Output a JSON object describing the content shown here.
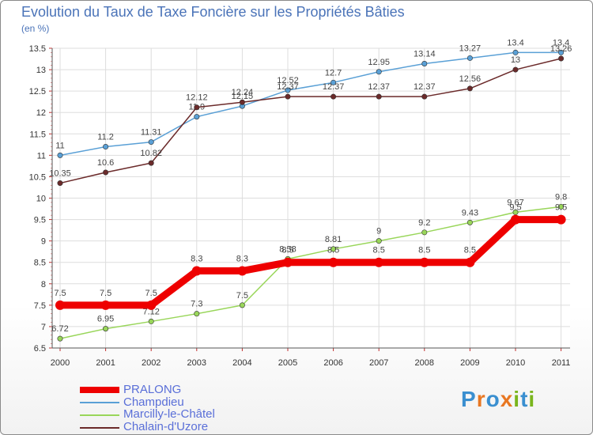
{
  "chart_data": {
    "type": "line",
    "title": "Evolution du Taux de Taxe Foncière sur les Propriétés Bâties",
    "ylabel": "(en %)",
    "xlabel": "",
    "ylim": [
      6.5,
      13.5
    ],
    "grid": true,
    "yticks": [
      "6.5",
      "7",
      "7.5",
      "8",
      "8.5",
      "9",
      "9.5",
      "10",
      "10.5",
      "11",
      "11.5",
      "12",
      "12.5",
      "13",
      "13.5"
    ],
    "categories": [
      "2000",
      "2001",
      "2002",
      "2003",
      "2004",
      "2005",
      "2006",
      "2007",
      "2008",
      "2009",
      "2010",
      "2011"
    ],
    "series": [
      {
        "name": "Champdieu",
        "color": "#5aa0d6",
        "values": [
          11,
          11.2,
          11.31,
          11.9,
          12.15,
          12.52,
          12.7,
          12.95,
          13.14,
          13.27,
          13.4,
          13.4
        ],
        "labels": [
          "11",
          "11.2",
          "11.31",
          "11.9",
          "12.15",
          "12.52",
          "12.7",
          "12.95",
          "13.14",
          "13.27",
          "13.4",
          "13.4"
        ]
      },
      {
        "name": "Chalain-d'Uzore",
        "color": "#6b2a2a",
        "values": [
          10.35,
          10.6,
          10.82,
          12.12,
          12.24,
          12.37,
          12.37,
          12.37,
          12.37,
          12.56,
          13,
          13.26
        ],
        "labels": [
          "10.35",
          "10.6",
          "10.82",
          "12.12",
          "12.24",
          "12.37",
          "12.37",
          "12.37",
          "12.37",
          "12.56",
          "13",
          "13.26"
        ]
      },
      {
        "name": "Marcilly-le-Châtel",
        "color": "#99d65a",
        "values": [
          6.72,
          6.95,
          7.12,
          7.3,
          7.5,
          8.58,
          8.81,
          9,
          9.2,
          9.43,
          9.67,
          9.8
        ],
        "labels": [
          "6.72",
          "6.95",
          "7.12",
          "7.3",
          "7.5",
          "8.58",
          "8.81",
          "9",
          "9.2",
          "9.43",
          "9.67",
          "9.8"
        ]
      },
      {
        "name": "PRALONG",
        "color": "#ee0000",
        "values": [
          7.5,
          7.5,
          7.5,
          8.3,
          8.3,
          8.5,
          8.5,
          8.5,
          8.5,
          8.5,
          9.5,
          9.5
        ],
        "labels": [
          "7.5",
          "7.5",
          "7.5",
          "8.3",
          "8.3",
          "8.5",
          "8.5",
          "8.5",
          "8.5",
          "8.5",
          "9.5",
          "9.5"
        ]
      }
    ],
    "legend": [
      "PRALONG",
      "Champdieu",
      "Marcilly-le-Châtel",
      "Chalain-d'Uzore"
    ],
    "legend_placement": "bottom-left"
  },
  "logo": {
    "text": "Proxiti",
    "letters": [
      "P",
      "r",
      "o",
      "x",
      "i",
      "t",
      "i"
    ],
    "colors": [
      "#3a8fd0",
      "#e87722",
      "#3a8fd0",
      "#e87722",
      "#7ab51d",
      "#3a8fd0",
      "#7ab51d"
    ]
  }
}
